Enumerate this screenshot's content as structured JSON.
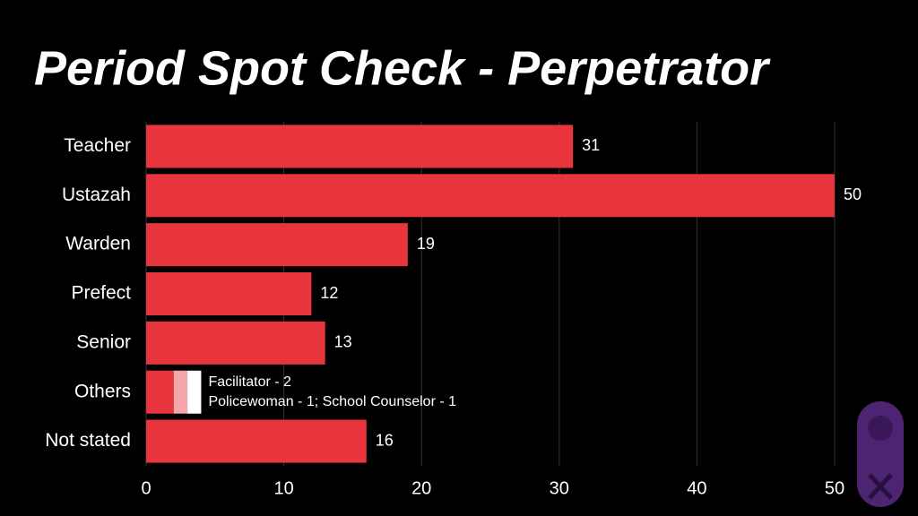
{
  "chart_data": {
    "type": "hbar",
    "title": "Period Spot Check - Perpetrator",
    "categories": [
      "Teacher",
      "Ustazah",
      "Warden",
      "Prefect",
      "Senior",
      "Others",
      "Not stated"
    ],
    "values": [
      31,
      50,
      19,
      12,
      13,
      null,
      16
    ],
    "color": "#e8343c",
    "others_segments": [
      {
        "name": "Facilitator",
        "value": 2,
        "color": "#e8343c"
      },
      {
        "name": "Policewoman",
        "value": 1,
        "color": "#f4a6ab"
      },
      {
        "name": "School Counselor",
        "value": 1,
        "color": "#ffffff"
      }
    ],
    "others_index": 5,
    "annotations": [
      "Facilitator - 2",
      "Policewoman - 1; School Counselor - 1"
    ],
    "xlim": [
      0,
      50
    ],
    "xticks": [
      0,
      10,
      20,
      30,
      40,
      50
    ],
    "grid": true
  }
}
